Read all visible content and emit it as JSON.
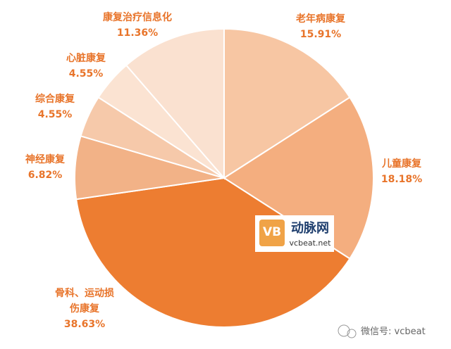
{
  "chart_data": {
    "type": "pie",
    "categories": [
      "老年病康复",
      "儿童康复",
      "骨科、运动损伤康复",
      "神经康复",
      "综合康复",
      "心脏康复",
      "康复治疗信息化"
    ],
    "values": [
      15.91,
      18.18,
      38.63,
      6.82,
      4.55,
      4.55,
      11.36
    ],
    "value_labels": [
      "15.91%",
      "18.18%",
      "38.63%",
      "6.82%",
      "4.55%",
      "4.55%",
      "11.36%"
    ],
    "colors": [
      "#f7c6a3",
      "#f4ae7f",
      "#ed7d31",
      "#f2b287",
      "#f6c9aa",
      "#fbe3d2",
      "#fae1d0"
    ]
  },
  "watermark": {
    "logo": "VB",
    "name": "动脉网",
    "url": "vcbeat.net"
  },
  "wechat": "微信号: vcbeat"
}
